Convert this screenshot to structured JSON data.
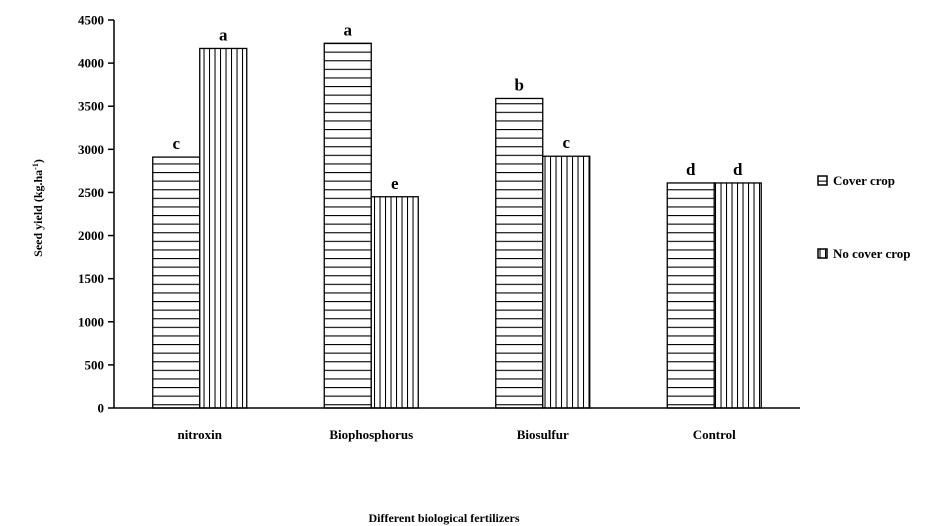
{
  "chart_data": {
    "type": "bar",
    "categories": [
      "nitroxin",
      "Biophosphorus",
      "Biosulfur",
      "Control"
    ],
    "series": [
      {
        "name": "Cover crop",
        "values": [
          2910,
          4230,
          3590,
          2610
        ],
        "letters": [
          "c",
          "a",
          "b",
          "d"
        ],
        "pattern": "horizontal-stripes"
      },
      {
        "name": "No cover crop",
        "values": [
          4170,
          2450,
          2920,
          2610
        ],
        "letters": [
          "a",
          "e",
          "c",
          "d"
        ],
        "pattern": "vertical-stripes"
      }
    ],
    "title": "",
    "xlabel": "Different biological fertilizers",
    "ylabel": "Seed yield (kg.ha",
    "ylabel_superscript": "-1",
    "ylabel_suffix": ")",
    "ylim": [
      0,
      4500
    ],
    "yticks": [
      0,
      500,
      1000,
      1500,
      2000,
      2500,
      3000,
      3500,
      4000,
      4500
    ],
    "grid": false,
    "legend_position": "right"
  }
}
